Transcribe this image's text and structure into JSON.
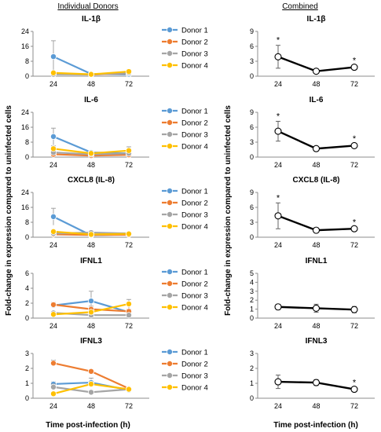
{
  "column_titles": [
    "Individual Donors",
    "Combined"
  ],
  "y_axis_label": "Fold-change in expression compared to uninfected cells",
  "x_axis_label": "Time post-infection (h)",
  "legend_labels": [
    "Donor 1",
    "Donor 2",
    "Donor 3",
    "Donor 4"
  ],
  "series_colors": [
    "#5b9bd5",
    "#ed7d31",
    "#a5a5a5",
    "#ffc000"
  ],
  "chart_data": [
    {
      "type": "line",
      "panel": "donors-il1b",
      "title": "IL-1β",
      "x": [
        24,
        48,
        72
      ],
      "yticks": [
        0,
        8,
        16,
        24
      ],
      "ylim": [
        0,
        24
      ],
      "series": [
        {
          "name": "Donor 1",
          "values": [
            10.5,
            1.2,
            1.0
          ],
          "err": [
            8.5,
            0.6,
            0.5
          ]
        },
        {
          "name": "Donor 2",
          "values": [
            1.5,
            0.8,
            1.6
          ],
          "err": [
            0.5,
            0.4,
            0.5
          ]
        },
        {
          "name": "Donor 3",
          "values": [
            1.0,
            0.9,
            1.8
          ],
          "err": [
            0.4,
            0.4,
            0.6
          ]
        },
        {
          "name": "Donor 4",
          "values": [
            1.8,
            1.0,
            2.5
          ],
          "err": [
            0.8,
            0.6,
            1.0
          ]
        }
      ]
    },
    {
      "type": "line",
      "panel": "donors-il6",
      "title": "IL-6",
      "x": [
        24,
        48,
        72
      ],
      "yticks": [
        0,
        8,
        16,
        24
      ],
      "ylim": [
        0,
        24
      ],
      "series": [
        {
          "name": "Donor 1",
          "values": [
            11.0,
            2.5,
            2.0
          ],
          "err": [
            4.5,
            0.8,
            0.8
          ]
        },
        {
          "name": "Donor 2",
          "values": [
            1.5,
            0.8,
            1.2
          ],
          "err": [
            0.5,
            0.4,
            0.5
          ]
        },
        {
          "name": "Donor 3",
          "values": [
            2.5,
            1.5,
            2.0
          ],
          "err": [
            0.8,
            0.5,
            0.6
          ]
        },
        {
          "name": "Donor 4",
          "values": [
            4.5,
            2.0,
            3.5
          ],
          "err": [
            1.5,
            1.0,
            2.0
          ]
        }
      ]
    },
    {
      "type": "line",
      "panel": "donors-cxcl8",
      "title": "CXCL8 (IL-8)",
      "x": [
        24,
        48,
        72
      ],
      "yticks": [
        0,
        8,
        16,
        24
      ],
      "ylim": [
        0,
        24
      ],
      "series": [
        {
          "name": "Donor 1",
          "values": [
            11.0,
            1.0,
            1.5
          ],
          "err": [
            4.5,
            0.5,
            0.5
          ]
        },
        {
          "name": "Donor 2",
          "values": [
            1.5,
            1.2,
            1.3
          ],
          "err": [
            0.5,
            0.4,
            0.4
          ]
        },
        {
          "name": "Donor 3",
          "values": [
            2.0,
            2.5,
            2.0
          ],
          "err": [
            0.6,
            0.8,
            0.6
          ]
        },
        {
          "name": "Donor 4",
          "values": [
            3.0,
            1.5,
            1.8
          ],
          "err": [
            1.0,
            0.6,
            0.6
          ]
        }
      ]
    },
    {
      "type": "line",
      "panel": "donors-ifnl1",
      "title": "IFNL1",
      "x": [
        24,
        48,
        72
      ],
      "yticks": [
        0,
        2,
        4,
        6
      ],
      "ylim": [
        0,
        6
      ],
      "series": [
        {
          "name": "Donor 1",
          "values": [
            1.7,
            2.3,
            0.8
          ],
          "err": [
            0.3,
            1.3,
            0.3
          ]
        },
        {
          "name": "Donor 2",
          "values": [
            1.8,
            1.2,
            0.9
          ],
          "err": [
            0.3,
            0.4,
            0.3
          ]
        },
        {
          "name": "Donor 3",
          "values": [
            0.7,
            0.4,
            0.4
          ],
          "err": [
            0.2,
            0.2,
            0.2
          ]
        },
        {
          "name": "Donor 4",
          "values": [
            0.5,
            0.8,
            1.9
          ],
          "err": [
            0.2,
            0.3,
            0.6
          ]
        }
      ]
    },
    {
      "type": "line",
      "panel": "donors-ifnl3",
      "title": "IFNL3",
      "x": [
        24,
        48,
        72
      ],
      "yticks": [
        0,
        1,
        2,
        3
      ],
      "ylim": [
        0,
        3
      ],
      "series": [
        {
          "name": "Donor 1",
          "values": [
            0.95,
            1.05,
            0.55
          ],
          "err": [
            0.15,
            0.3,
            0.1
          ]
        },
        {
          "name": "Donor 2",
          "values": [
            2.35,
            1.8,
            0.65
          ],
          "err": [
            0.2,
            0.1,
            0.1
          ]
        },
        {
          "name": "Donor 3",
          "values": [
            0.75,
            0.4,
            0.6
          ],
          "err": [
            0.2,
            0.1,
            0.1
          ]
        },
        {
          "name": "Donor 4",
          "values": [
            0.3,
            0.95,
            0.6
          ],
          "err": [
            0.1,
            0.15,
            0.1
          ]
        }
      ]
    },
    {
      "type": "line",
      "panel": "combined-il1b",
      "title": "IL-1β",
      "x": [
        24,
        48,
        72
      ],
      "yticks": [
        0,
        3,
        6,
        9
      ],
      "ylim": [
        0,
        9
      ],
      "series": [
        {
          "values": [
            3.9,
            1.0,
            1.8
          ],
          "err": [
            2.3,
            0.2,
            0.3
          ]
        }
      ],
      "significant": [
        true,
        false,
        true
      ]
    },
    {
      "type": "line",
      "panel": "combined-il6",
      "title": "IL-6",
      "x": [
        24,
        48,
        72
      ],
      "yticks": [
        0,
        3,
        6,
        9
      ],
      "ylim": [
        0,
        9
      ],
      "series": [
        {
          "values": [
            5.2,
            1.7,
            2.3
          ],
          "err": [
            2.0,
            0.3,
            0.4
          ]
        }
      ],
      "significant": [
        true,
        false,
        true
      ]
    },
    {
      "type": "line",
      "panel": "combined-cxcl8",
      "title": "CXCL8 (IL-8)",
      "x": [
        24,
        48,
        72
      ],
      "yticks": [
        0,
        3,
        6,
        9
      ],
      "ylim": [
        0,
        9
      ],
      "series": [
        {
          "values": [
            4.3,
            1.4,
            1.7
          ],
          "err": [
            2.6,
            0.3,
            0.3
          ]
        }
      ],
      "significant": [
        true,
        false,
        true
      ]
    },
    {
      "type": "line",
      "panel": "combined-ifnl1",
      "title": "IFNL1",
      "x": [
        24,
        48,
        72
      ],
      "yticks": [
        0,
        1,
        2,
        3,
        4,
        5
      ],
      "ylim": [
        0,
        5
      ],
      "series": [
        {
          "values": [
            1.25,
            1.1,
            0.95
          ],
          "err": [
            0.3,
            0.45,
            0.35
          ]
        }
      ],
      "significant": [
        false,
        false,
        false
      ]
    },
    {
      "type": "line",
      "panel": "combined-ifnl3",
      "title": "IFNL3",
      "x": [
        24,
        48,
        72
      ],
      "yticks": [
        0,
        1,
        2,
        3
      ],
      "ylim": [
        0,
        3
      ],
      "series": [
        {
          "values": [
            1.1,
            1.05,
            0.6
          ],
          "err": [
            0.45,
            0.2,
            0.1
          ]
        }
      ],
      "significant": [
        false,
        false,
        true
      ]
    }
  ]
}
